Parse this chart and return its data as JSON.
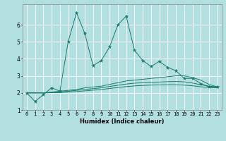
{
  "xlabel": "Humidex (Indice chaleur)",
  "background_color": "#b2e0e0",
  "grid_color": "#ffffff",
  "line_color": "#1a7a6e",
  "x_values": [
    0,
    1,
    2,
    3,
    4,
    5,
    6,
    7,
    8,
    9,
    10,
    11,
    12,
    13,
    14,
    15,
    16,
    17,
    18,
    19,
    20,
    21,
    22,
    23
  ],
  "series_main": [
    2.0,
    1.5,
    1.9,
    2.3,
    2.1,
    5.0,
    6.7,
    5.5,
    3.6,
    3.9,
    4.7,
    6.0,
    6.5,
    4.5,
    3.9,
    3.55,
    3.85,
    3.5,
    3.3,
    2.85,
    2.85,
    2.55,
    2.35,
    2.35
  ],
  "series_smooth1": [
    2.0,
    2.0,
    2.0,
    2.05,
    2.1,
    2.15,
    2.2,
    2.3,
    2.35,
    2.4,
    2.5,
    2.6,
    2.7,
    2.75,
    2.8,
    2.85,
    2.9,
    2.95,
    3.0,
    3.0,
    2.9,
    2.75,
    2.5,
    2.35
  ],
  "series_smooth2": [
    2.0,
    2.0,
    2.0,
    2.02,
    2.05,
    2.1,
    2.15,
    2.2,
    2.25,
    2.3,
    2.38,
    2.45,
    2.52,
    2.57,
    2.6,
    2.62,
    2.64,
    2.66,
    2.67,
    2.65,
    2.58,
    2.48,
    2.4,
    2.35
  ],
  "series_smooth3": [
    2.0,
    2.0,
    2.0,
    2.01,
    2.02,
    2.05,
    2.08,
    2.12,
    2.16,
    2.2,
    2.26,
    2.32,
    2.37,
    2.41,
    2.44,
    2.46,
    2.47,
    2.48,
    2.48,
    2.46,
    2.42,
    2.36,
    2.32,
    2.3
  ],
  "ylim": [
    1.0,
    7.2
  ],
  "xlim": [
    -0.5,
    23.5
  ],
  "yticks": [
    1,
    2,
    3,
    4,
    5,
    6
  ],
  "xtick_labels": [
    "0",
    "1",
    "2",
    "3",
    "4",
    "5",
    "6",
    "7",
    "8",
    "9",
    "10",
    "11",
    "12",
    "13",
    "14",
    "15",
    "16",
    "17",
    "18",
    "19",
    "20",
    "21",
    "22",
    "23"
  ],
  "xlabel_fontsize": 6.0,
  "tick_fontsize": 5.0
}
